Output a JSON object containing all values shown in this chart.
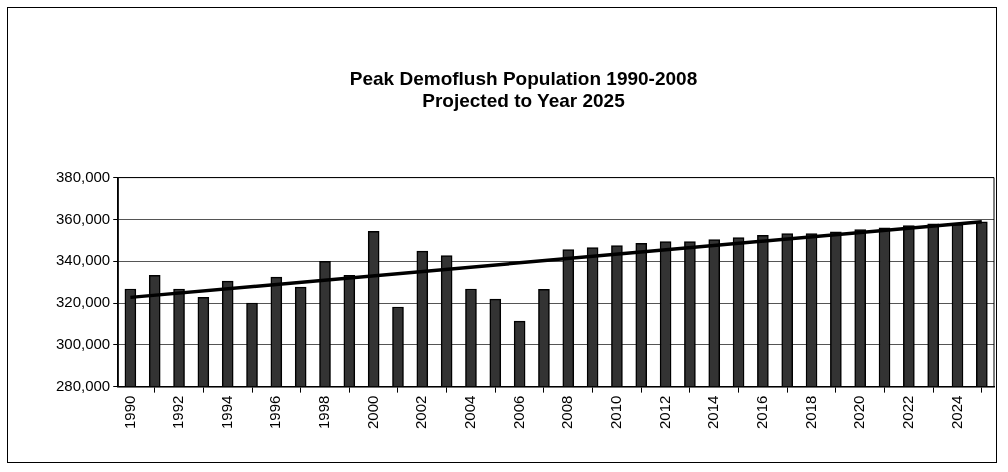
{
  "chart_data": {
    "type": "bar",
    "title": "Peak Demoflush Population 1990-2008\nProjected to Year 2025",
    "x": [
      1990,
      1991,
      1992,
      1993,
      1994,
      1995,
      1996,
      1997,
      1998,
      1999,
      2000,
      2001,
      2002,
      2003,
      2004,
      2005,
      2006,
      2007,
      2008,
      2009,
      2010,
      2011,
      2012,
      2013,
      2014,
      2015,
      2016,
      2017,
      2018,
      2019,
      2020,
      2021,
      2022,
      2023,
      2024,
      2025
    ],
    "series": [
      {
        "color": "#333333",
        "values": [
          326700,
          333300,
          326700,
          322700,
          330500,
          320000,
          332400,
          327600,
          340000,
          333300,
          354300,
          318100,
          344800,
          342700,
          326700,
          321900,
          311300,
          326500,
          345600,
          346500,
          347500,
          348600,
          349400,
          349400,
          350300,
          351300,
          352400,
          353200,
          353200,
          354100,
          355100,
          356000,
          357100,
          357900,
          357600,
          358900
        ]
      },
      {
        "type": "line",
        "color": "#000000",
        "x": [
          1990,
          2025
        ],
        "values": [
          322700,
          358900
        ]
      }
    ],
    "xlim": [
      1989.5,
      2025.5
    ],
    "xticks": [
      1990,
      1992,
      1994,
      1996,
      1998,
      2000,
      2002,
      2004,
      2006,
      2008,
      2010,
      2012,
      2014,
      2016,
      2018,
      2020,
      2022,
      2024
    ],
    "ylim": [
      280000,
      380000
    ],
    "yticks": [
      {
        "value": 280000,
        "label": "280,000"
      },
      {
        "value": 300000,
        "label": "300,000"
      },
      {
        "value": 320000,
        "label": "320,000"
      },
      {
        "value": 340000,
        "label": "340,000"
      },
      {
        "value": 360000,
        "label": "360,000"
      },
      {
        "value": 380000,
        "label": "380,000"
      }
    ],
    "grid": "y",
    "legend": false,
    "marker": "none",
    "line_style": "solid"
  }
}
